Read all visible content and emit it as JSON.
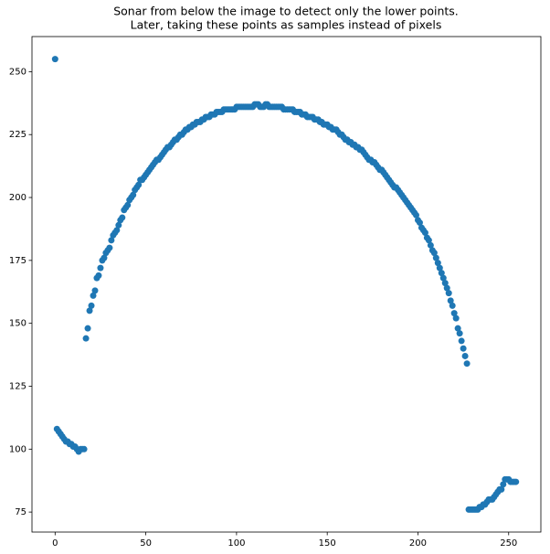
{
  "chart_data": {
    "type": "scatter",
    "title": [
      "Sonar from below the image to detect only the lower points.",
      "Later, taking these points as samples instead of pixels"
    ],
    "color": "#1f77b4",
    "xlim": [
      -12.75,
      267.75
    ],
    "ylim": [
      67.05,
      263.95
    ],
    "xticks": [
      0,
      50,
      100,
      150,
      200,
      250
    ],
    "yticks": [
      75,
      100,
      125,
      150,
      175,
      200,
      225,
      250
    ],
    "grid": false,
    "x": [
      0,
      1,
      2,
      3,
      4,
      5,
      6,
      7,
      8,
      9,
      10,
      11,
      12,
      13,
      14,
      15,
      16,
      17,
      18,
      19,
      20,
      21,
      22,
      23,
      24,
      25,
      26,
      27,
      28,
      29,
      30,
      31,
      32,
      33,
      34,
      35,
      36,
      37,
      38,
      39,
      40,
      41,
      42,
      43,
      44,
      45,
      46,
      47,
      48,
      49,
      50,
      51,
      52,
      53,
      54,
      55,
      56,
      57,
      58,
      59,
      60,
      61,
      62,
      63,
      64,
      65,
      66,
      67,
      68,
      69,
      70,
      71,
      72,
      73,
      74,
      75,
      76,
      77,
      78,
      79,
      80,
      81,
      82,
      83,
      84,
      85,
      86,
      87,
      88,
      89,
      90,
      91,
      92,
      93,
      94,
      95,
      96,
      97,
      98,
      99,
      100,
      101,
      102,
      103,
      104,
      105,
      106,
      107,
      108,
      109,
      110,
      111,
      112,
      113,
      114,
      115,
      116,
      117,
      118,
      119,
      120,
      121,
      122,
      123,
      124,
      125,
      126,
      127,
      128,
      129,
      130,
      131,
      132,
      133,
      134,
      135,
      136,
      137,
      138,
      139,
      140,
      141,
      142,
      143,
      144,
      145,
      146,
      147,
      148,
      149,
      150,
      151,
      152,
      153,
      154,
      155,
      156,
      157,
      158,
      159,
      160,
      161,
      162,
      163,
      164,
      165,
      166,
      167,
      168,
      169,
      170,
      171,
      172,
      173,
      174,
      175,
      176,
      177,
      178,
      179,
      180,
      181,
      182,
      183,
      184,
      185,
      186,
      187,
      188,
      189,
      190,
      191,
      192,
      193,
      194,
      195,
      196,
      197,
      198,
      199,
      200,
      201,
      202,
      203,
      204,
      205,
      206,
      207,
      208,
      209,
      210,
      211,
      212,
      213,
      214,
      215,
      216,
      217,
      218,
      219,
      220,
      221,
      222,
      223,
      224,
      225,
      226,
      227,
      228,
      229,
      230,
      231,
      232,
      233,
      234,
      235,
      236,
      237,
      238,
      239,
      240,
      241,
      242,
      243,
      244,
      245,
      246,
      247,
      248,
      249,
      250,
      251,
      252,
      253,
      254
    ],
    "values": [
      255,
      108,
      107,
      106,
      105,
      104,
      103,
      103,
      102,
      102,
      101,
      101,
      100,
      99,
      100,
      100,
      100,
      144,
      148,
      155,
      157,
      161,
      163,
      168,
      169,
      172,
      175,
      176,
      178,
      179,
      180,
      183,
      185,
      186,
      187,
      189,
      191,
      192,
      195,
      196,
      197,
      199,
      200,
      201,
      203,
      204,
      205,
      207,
      207,
      208,
      209,
      210,
      211,
      212,
      213,
      214,
      215,
      215,
      216,
      217,
      218,
      219,
      220,
      220,
      221,
      222,
      223,
      223,
      224,
      225,
      225,
      226,
      227,
      227,
      228,
      228,
      229,
      229,
      230,
      230,
      230,
      231,
      231,
      232,
      232,
      232,
      233,
      233,
      233,
      234,
      234,
      234,
      234,
      235,
      235,
      235,
      235,
      235,
      235,
      235,
      236,
      236,
      236,
      236,
      236,
      236,
      236,
      236,
      236,
      236,
      237,
      237,
      237,
      236,
      236,
      236,
      237,
      237,
      236,
      236,
      236,
      236,
      236,
      236,
      236,
      236,
      235,
      235,
      235,
      235,
      235,
      235,
      234,
      234,
      234,
      234,
      233,
      233,
      233,
      232,
      232,
      232,
      232,
      231,
      231,
      231,
      230,
      230,
      229,
      229,
      229,
      228,
      228,
      227,
      227,
      227,
      226,
      225,
      225,
      224,
      223,
      223,
      222,
      222,
      221,
      221,
      220,
      220,
      219,
      219,
      218,
      217,
      216,
      215,
      215,
      214,
      214,
      213,
      212,
      211,
      211,
      210,
      209,
      208,
      207,
      206,
      205,
      204,
      204,
      203,
      202,
      201,
      200,
      199,
      198,
      197,
      196,
      195,
      194,
      193,
      191,
      190,
      188,
      187,
      186,
      184,
      183,
      181,
      179,
      178,
      176,
      174,
      172,
      170,
      168,
      166,
      164,
      162,
      159,
      157,
      154,
      152,
      148,
      146,
      143,
      140,
      137,
      134,
      76,
      76,
      76,
      76,
      76,
      76,
      77,
      77,
      78,
      78,
      79,
      80,
      80,
      80,
      81,
      82,
      83,
      84,
      84,
      86,
      88,
      88,
      88,
      87,
      87,
      87,
      87
    ]
  }
}
